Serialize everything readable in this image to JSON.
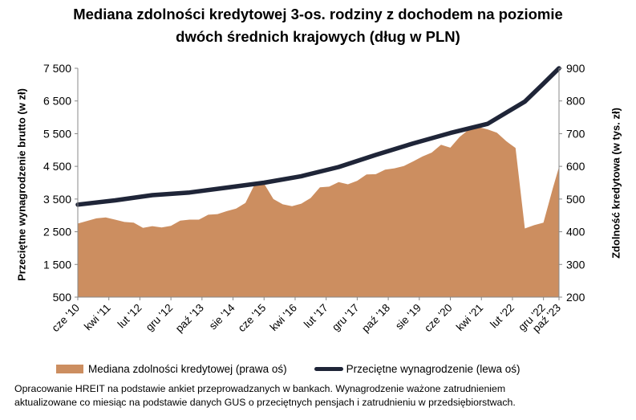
{
  "title": {
    "line1": "Mediana zdolności kredytowej 3-os. rodziny z dochodem na poziomie",
    "line2": "dwóch średnich krajowych (dług w PLN)"
  },
  "legend": {
    "area_label": "Mediana zdolności kredytowej (prawa oś)",
    "line_label": "Przeciętne wynagrodzenie (lewa oś)"
  },
  "note": {
    "line1": "Opracowanie HREIT na podstawie ankiet przeprowadzanych w bankach. Wynagrodzenie ważone zatrudnieniem",
    "line2": "aktualizowane co miesiąc na podstawie danych GUS o przeciętnych pensjach i zatrudnieniu w przedsiębiorstwach."
  },
  "chart_data": {
    "type": "area+line",
    "title": "Mediana zdolności kredytowej 3-os. rodziny z dochodem na poziomie dwóch średnich krajowych (dług w PLN)",
    "ylabel_left": "Przeciętne wynagrodzenie brutto (w zł)",
    "ylabel_right": "Zdolność kredytowa (w tys. zł)",
    "ylim_left": [
      500,
      7500
    ],
    "ylim_right": [
      200,
      900
    ],
    "yticks_left": [
      "500",
      "1 500",
      "2 500",
      "3 500",
      "4 500",
      "5 500",
      "6 500",
      "7 500"
    ],
    "yticks_left_values": [
      500,
      1500,
      2500,
      3500,
      4500,
      5500,
      6500,
      7500
    ],
    "yticks_right": [
      "200",
      "300",
      "400",
      "500",
      "600",
      "700",
      "800",
      "900"
    ],
    "yticks_right_values": [
      200,
      300,
      400,
      500,
      600,
      700,
      800,
      900
    ],
    "x_range": [
      "2010-06",
      "2023-05"
    ],
    "xtick_labels": [
      "cze '10",
      "kwi '11",
      "lut '12",
      "gru '12",
      "paź '13",
      "sie '14",
      "cze '15",
      "kwi '16",
      "lut '17",
      "gru '17",
      "paź '18",
      "sie '19",
      "cze '20",
      "kwi '21",
      "lut '22",
      "gru '22",
      "paź '23"
    ],
    "xtick_dates": [
      "2010-06",
      "2011-04",
      "2012-02",
      "2012-12",
      "2013-10",
      "2014-08",
      "2015-06",
      "2016-04",
      "2017-02",
      "2017-12",
      "2018-10",
      "2019-08",
      "2020-06",
      "2021-04",
      "2022-02",
      "2022-12",
      "2023-10"
    ],
    "grid": false,
    "legend_position": "bottom",
    "colors": {
      "area": "#CC8E60",
      "line": "#1F2538",
      "axis": "#888888"
    },
    "series": [
      {
        "name": "Mediana zdolności kredytowej (prawa oś)",
        "type": "area",
        "axis": "right",
        "x": [
          "2010-06",
          "2010-09",
          "2010-12",
          "2011-03",
          "2011-06",
          "2011-09",
          "2011-12",
          "2012-03",
          "2012-06",
          "2012-09",
          "2012-12",
          "2013-03",
          "2013-06",
          "2013-09",
          "2013-12",
          "2014-03",
          "2014-06",
          "2014-09",
          "2014-12",
          "2015-03",
          "2015-06",
          "2015-09",
          "2015-12",
          "2016-03",
          "2016-06",
          "2016-09",
          "2016-12",
          "2017-03",
          "2017-06",
          "2017-09",
          "2017-12",
          "2018-03",
          "2018-06",
          "2018-09",
          "2018-12",
          "2019-03",
          "2019-06",
          "2019-09",
          "2019-12",
          "2020-03",
          "2020-06",
          "2020-09",
          "2020-12",
          "2021-03",
          "2021-06",
          "2021-09",
          "2021-12",
          "2022-03",
          "2022-06",
          "2022-09",
          "2022-12",
          "2023-03",
          "2023-05"
        ],
        "values": [
          425,
          433,
          441,
          444,
          437,
          430,
          428,
          412,
          417,
          413,
          418,
          434,
          437,
          437,
          452,
          454,
          463,
          471,
          488,
          545,
          547,
          500,
          484,
          478,
          486,
          503,
          536,
          538,
          552,
          545,
          556,
          575,
          576,
          590,
          594,
          601,
          615,
          630,
          642,
          666,
          657,
          690,
          713,
          720,
          713,
          703,
          677,
          656,
          410,
          420,
          428,
          533,
          598
        ]
      },
      {
        "name": "Przeciętne wynagrodzenie (lewa oś)",
        "type": "line",
        "axis": "left",
        "x": [
          "2010-06",
          "2011-06",
          "2012-06",
          "2013-06",
          "2014-06",
          "2015-06",
          "2016-06",
          "2017-06",
          "2018-06",
          "2019-06",
          "2020-06",
          "2021-06",
          "2022-06",
          "2022-12",
          "2023-05"
        ],
        "values": [
          3330,
          3460,
          3620,
          3700,
          3850,
          4000,
          4200,
          4480,
          4850,
          5200,
          5520,
          5800,
          6480,
          7030,
          7500
        ]
      }
    ]
  }
}
